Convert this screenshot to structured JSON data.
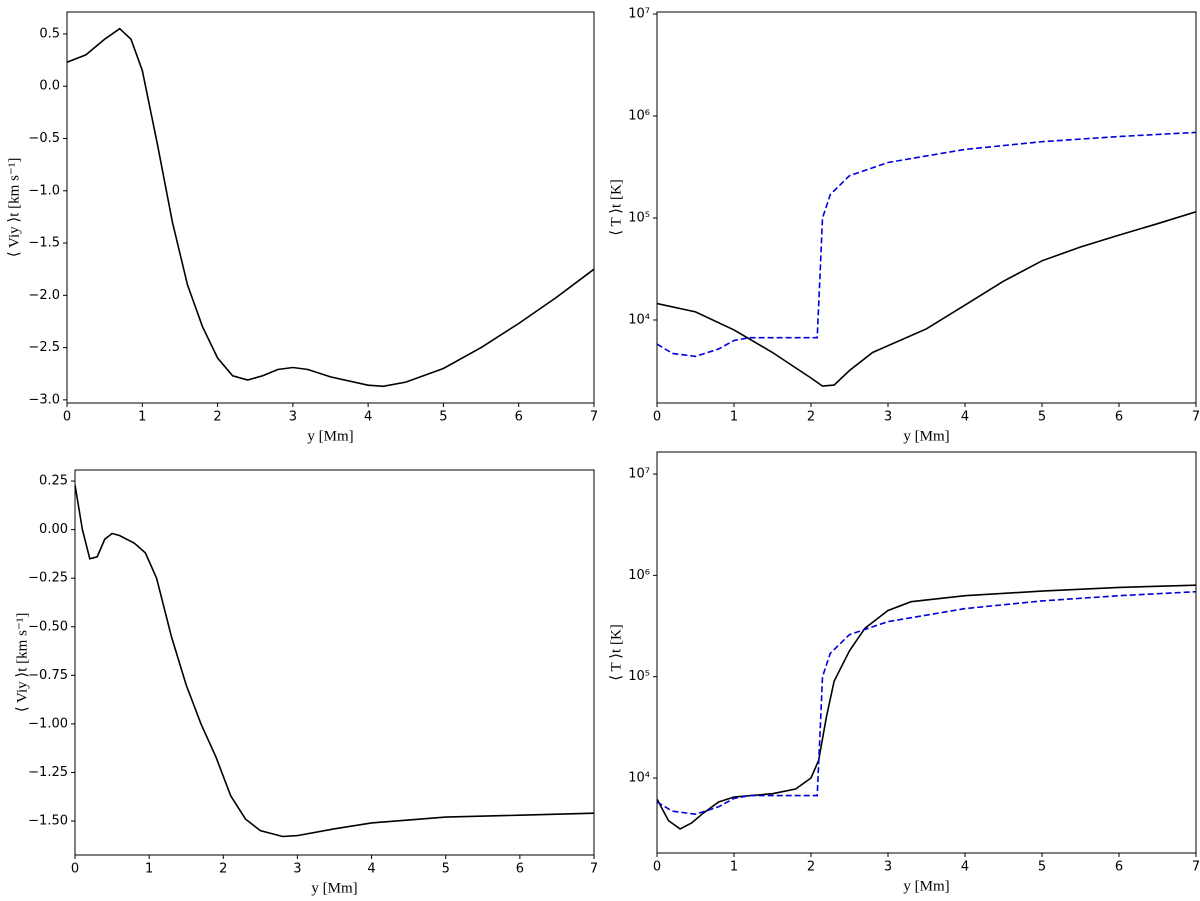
{
  "chart_data": [
    {
      "type": "line",
      "xlabel": "y [Mm]",
      "ylabel": "⟨ Viy ⟩t [km s⁻¹]",
      "xlim": [
        0,
        7
      ],
      "xticks": [
        0,
        1,
        2,
        3,
        4,
        5,
        6,
        7
      ],
      "ylim": [
        -3.03,
        0.71
      ],
      "yticks": [
        {
          "value": 0.5,
          "label": "0.5"
        },
        {
          "value": 0,
          "label": "0.0"
        },
        {
          "value": -0.5,
          "label": "−0.5"
        },
        {
          "value": -1,
          "label": "−1.0"
        },
        {
          "value": -1.5,
          "label": "−1.5"
        },
        {
          "value": -2,
          "label": "−2.0"
        },
        {
          "value": -2.5,
          "label": "−2.5"
        },
        {
          "value": -3,
          "label": "−3.0"
        }
      ],
      "series": [
        {
          "color": "#000000",
          "dashed": false,
          "x": [
            0,
            0.25,
            0.5,
            0.7,
            0.85,
            1.0,
            1.2,
            1.4,
            1.6,
            1.8,
            2.0,
            2.2,
            2.4,
            2.6,
            2.8,
            3.0,
            3.2,
            3.5,
            4.0,
            4.2,
            4.5,
            5.0,
            5.5,
            6.0,
            6.5,
            7.0
          ],
          "values": [
            0.23,
            0.3,
            0.45,
            0.55,
            0.45,
            0.15,
            -0.55,
            -1.3,
            -1.9,
            -2.3,
            -2.6,
            -2.77,
            -2.81,
            -2.77,
            -2.71,
            -2.69,
            -2.71,
            -2.78,
            -2.86,
            -2.87,
            -2.83,
            -2.7,
            -2.5,
            -2.27,
            -2.02,
            -1.75
          ]
        }
      ]
    },
    {
      "type": "line",
      "xlabel": "y [Mm]",
      "ylabel": "⟨ T ⟩t [K]",
      "log_y": true,
      "xlim": [
        0,
        7
      ],
      "xticks": [
        0,
        1,
        2,
        3,
        4,
        5,
        6,
        7
      ],
      "ylim": [
        1535,
        10460000
      ],
      "yticks": [
        {
          "value": 10000,
          "label": "10⁴"
        },
        {
          "value": 100000,
          "label": "10⁵"
        },
        {
          "value": 1000000,
          "label": "10⁶"
        },
        {
          "value": 10000000,
          "label": "10⁷"
        }
      ],
      "series": [
        {
          "color": "#000000",
          "dashed": false,
          "x": [
            0,
            0.5,
            1,
            1.5,
            2,
            2.15,
            2.3,
            2.5,
            2.8,
            3.0,
            3.5,
            4,
            4.5,
            5,
            5.5,
            6,
            6.5,
            7
          ],
          "values": [
            14500,
            12000,
            8000,
            4800,
            2700,
            2250,
            2300,
            3200,
            4800,
            5600,
            8200,
            14000,
            24000,
            38000,
            52000,
            68000,
            88000,
            115000
          ]
        },
        {
          "color": "#0000dd",
          "dashed": true,
          "x": [
            0,
            0.2,
            0.5,
            0.8,
            1.0,
            1.2,
            2.08,
            2.12,
            2.15,
            2.25,
            2.5,
            3,
            4,
            5,
            6,
            7
          ],
          "values": [
            5800,
            4700,
            4400,
            5200,
            6300,
            6700,
            6700,
            30000,
            100000,
            170000,
            260000,
            350000,
            470000,
            560000,
            630000,
            690000
          ]
        }
      ]
    },
    {
      "type": "line",
      "xlabel": "y [Mm]",
      "ylabel": "⟨ Viy ⟩t [km s⁻¹]",
      "xlim": [
        0,
        7
      ],
      "xticks": [
        0,
        1,
        2,
        3,
        4,
        5,
        6,
        7
      ],
      "ylim": [
        -1.675,
        0.307
      ],
      "yticks": [
        {
          "value": 0.25,
          "label": "0.25"
        },
        {
          "value": 0,
          "label": "0.00"
        },
        {
          "value": -0.25,
          "label": "−0.25"
        },
        {
          "value": -0.5,
          "label": "−0.50"
        },
        {
          "value": -0.75,
          "label": "−0.75"
        },
        {
          "value": -1,
          "label": "−1.00"
        },
        {
          "value": -1.25,
          "label": "−1.25"
        },
        {
          "value": -1.5,
          "label": "−1.50"
        }
      ],
      "series": [
        {
          "color": "#000000",
          "dashed": false,
          "x": [
            0,
            0.1,
            0.2,
            0.3,
            0.4,
            0.5,
            0.6,
            0.8,
            0.95,
            1.1,
            1.3,
            1.5,
            1.7,
            1.9,
            2.1,
            2.3,
            2.5,
            2.8,
            3.0,
            3.5,
            4,
            5,
            6,
            7
          ],
          "values": [
            0.23,
            0.0,
            -0.15,
            -0.14,
            -0.05,
            -0.02,
            -0.03,
            -0.07,
            -0.12,
            -0.25,
            -0.55,
            -0.8,
            -1.0,
            -1.17,
            -1.37,
            -1.49,
            -1.55,
            -1.58,
            -1.575,
            -1.54,
            -1.51,
            -1.48,
            -1.47,
            -1.46
          ]
        }
      ]
    },
    {
      "type": "line",
      "xlabel": "y [Mm]",
      "ylabel": "⟨ T ⟩t [K]",
      "log_y": true,
      "xlim": [
        0,
        7
      ],
      "xticks": [
        0,
        1,
        2,
        3,
        4,
        5,
        6,
        7
      ],
      "ylim": [
        1820,
        16500000
      ],
      "yticks": [
        {
          "value": 10000,
          "label": "10⁴"
        },
        {
          "value": 100000,
          "label": "10⁵"
        },
        {
          "value": 1000000,
          "label": "10⁶"
        },
        {
          "value": 10000000,
          "label": "10⁷"
        }
      ],
      "series": [
        {
          "color": "#000000",
          "dashed": false,
          "x": [
            0,
            0.15,
            0.3,
            0.45,
            0.6,
            0.8,
            1.0,
            1.5,
            1.8,
            2.0,
            2.1,
            2.2,
            2.3,
            2.5,
            2.7,
            3.0,
            3.3,
            4,
            5,
            6,
            7
          ],
          "values": [
            6200,
            3800,
            3150,
            3600,
            4500,
            5800,
            6500,
            7000,
            7800,
            10000,
            15000,
            40000,
            90000,
            180000,
            300000,
            450000,
            550000,
            630000,
            700000,
            760000,
            800000
          ]
        },
        {
          "color": "#0000dd",
          "dashed": true,
          "x": [
            0,
            0.2,
            0.5,
            0.8,
            1.0,
            1.2,
            2.08,
            2.12,
            2.15,
            2.25,
            2.5,
            3,
            4,
            5,
            6,
            7
          ],
          "values": [
            5800,
            4700,
            4400,
            5200,
            6300,
            6700,
            6700,
            30000,
            100000,
            170000,
            260000,
            350000,
            470000,
            560000,
            630000,
            690000
          ]
        }
      ]
    }
  ]
}
